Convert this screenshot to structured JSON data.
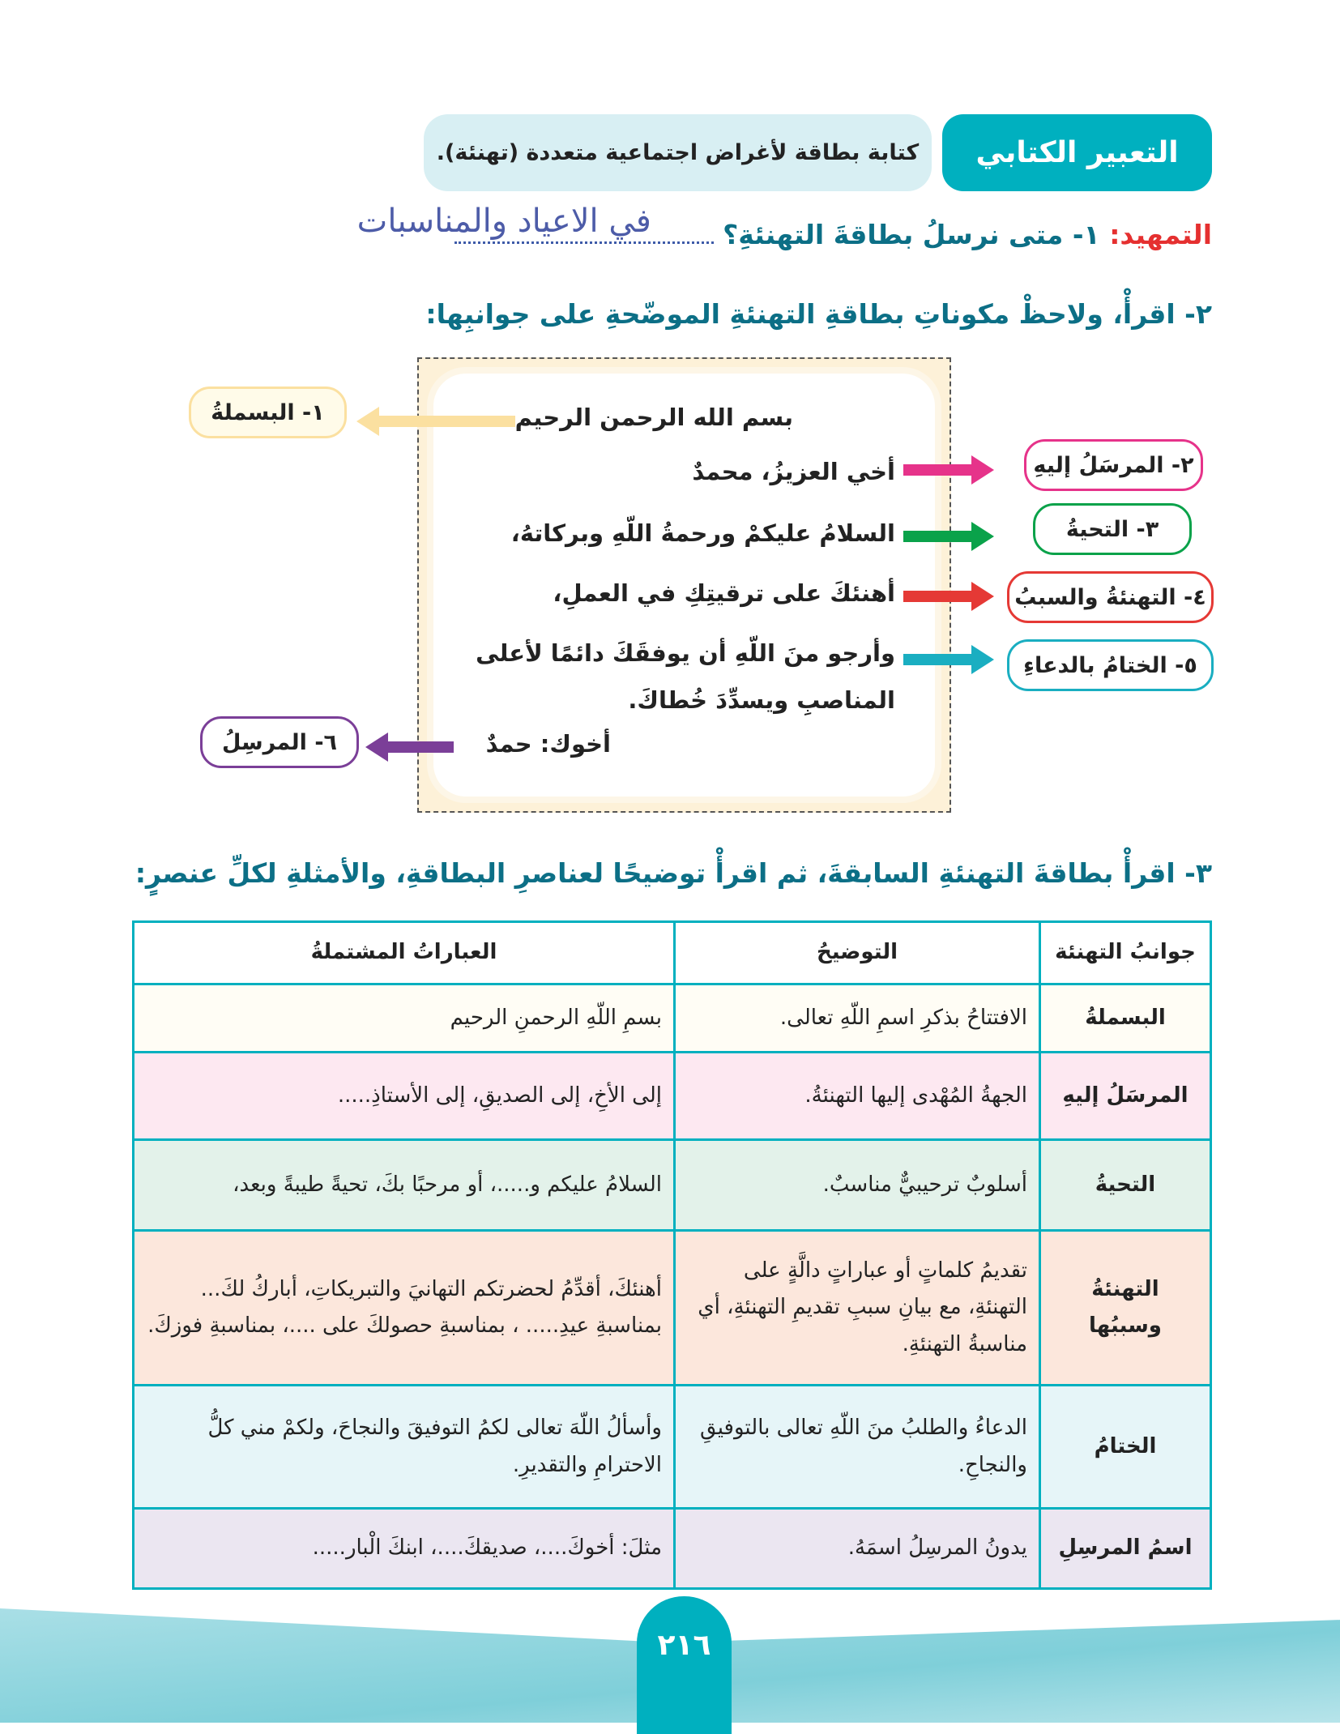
{
  "header": {
    "section": "التعبير الكتابي",
    "topic": "كتابة بطاقة لأغراض اجتماعية متعددة (تهنئة)."
  },
  "intro": {
    "label": "التمهيد:",
    "q1": "١- متى نرسلُ بطاقةَ التهنئةِ؟",
    "a1": "في الاعياد والمناسبات",
    "q2": "٢- اقرأْ، ولاحظْ مكوناتِ بطاقةِ التهنئةِ الموضّحةِ على جوانبِها:"
  },
  "card": {
    "lines": [
      "بسم الله الرحمن الرحيم",
      "أخي العزيزُ، محمدٌ",
      "السلامُ عليكمْ ورحمةُ اللّهِ وبركاتهُ،",
      "أهنئكَ على ترقيتِكِ في العملِ،",
      "وأرجو منَ اللّهِ أن يوفقَكَ دائمًا لأعلى",
      "المناصبِ ويسدِّدَ خُطاكَ.",
      "أخوك: حمدٌ"
    ]
  },
  "labels": [
    "١- البسملةُ",
    "٢- المرسَلُ إليهِ",
    "٣- التحيةُ",
    "٤- التهنئةُ والسببُ",
    "٥- الختامُ بالدعاءِ",
    "٦- المرسِلُ"
  ],
  "colors": {
    "bismala": "#fbe0a0",
    "recipient": "#e6338a",
    "greeting": "#0aa24a",
    "reason": "#e53935",
    "closing": "#1aaec1",
    "sender": "#7b3f98"
  },
  "q3": "٣- اقرأْ بطاقةَ التهنئةِ السابقةَ، ثم اقرأْ توضيحًا لعناصرِ البطاقةِ، والأمثلةِ لكلِّ عنصرٍ:",
  "table": {
    "headers": [
      "جوانبُ التهنئة",
      "التوضيحُ",
      "العباراتُ المشتملةُ"
    ],
    "rows": [
      [
        "البسملةُ",
        "الافتتاحُ بذكرِ اسمِ اللّهِ تعالى.",
        "بسمِ اللّهِ الرحمنِ الرحيم"
      ],
      [
        "المرسَلُ إليهِ",
        "الجهةُ المُهْدى إليها التهنئةُ.",
        "إلى الأخِ، إلى الصديقِ، إلى الأستاذِ....."
      ],
      [
        "التحيةُ",
        "أسلوبٌ ترحيبيٌّ مناسبٌ.",
        "السلامُ عليكم و.....، أو مرحبًا بكَ، تحيةً طيبةً وبعد،"
      ],
      [
        "التهنئةُ وسببُها",
        "تقديمُ كلماتٍ أو عباراتٍ دالَّةٍ على التهنئةِ، مع بيانِ سببِ تقديمِ التهنئةِ، أي مناسبةُ التهنئةِ.",
        "أهنئكَ، أقدِّمُ لحضرتكم التهانيَ والتبريكاتِ، أباركُ لكَ... بمناسبةِ عيدِ..... ، بمناسبةِ حصولكَ على ....، بمناسبةِ فوزكَ."
      ],
      [
        "الختامُ",
        "الدعاءُ والطلبُ منَ اللّهِ تعالى بالتوفيقِ والنجاحِ.",
        "وأسألُ اللّهَ تعالى لكمُ التوفيقَ والنجاحَ، ولكمْ مني كلُّ الاحترامِ والتقديرِ."
      ],
      [
        "اسمُ المرسِلِ",
        "يدونُ المرسِلُ اسمَهُ.",
        "مثلَ: أخوكَ....، صديقكَ....، ابنكَ الْبار....."
      ]
    ]
  },
  "page_number": "٢١٦"
}
